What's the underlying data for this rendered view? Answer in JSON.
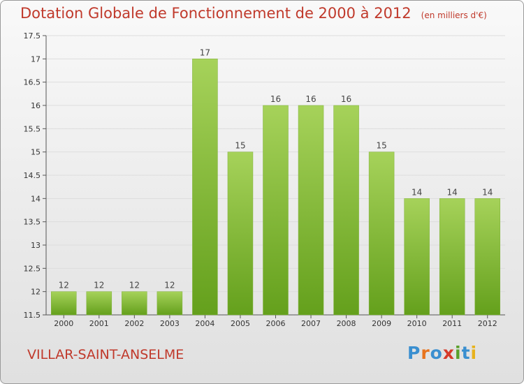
{
  "title": "Dotation Globale de Fonctionnement de 2000 à 2012",
  "unit_note": "(en milliers d'€)",
  "commune": "VILLAR-SAINT-ANSELME",
  "logo": {
    "letters": [
      "P",
      "r",
      "o",
      "x",
      "i",
      "t",
      "i"
    ],
    "colors": [
      "#3a8fd0",
      "#e8731c",
      "#3a8fd0",
      "#d63a2a",
      "#5aa02c",
      "#3a8fd0",
      "#e8b21c"
    ]
  },
  "colors": {
    "bar_top": "#a6d25a",
    "bar_bottom": "#64a01c",
    "title": "#c0392b",
    "grid": "#dddddd"
  },
  "chart_data": {
    "type": "bar",
    "title": "Dotation Globale de Fonctionnement de 2000 à 2012",
    "ylabel": "(en milliers d'€)",
    "xlabel": "",
    "categories": [
      "2000",
      "2001",
      "2002",
      "2003",
      "2004",
      "2005",
      "2006",
      "2007",
      "2008",
      "2009",
      "2010",
      "2011",
      "2012"
    ],
    "values": [
      12,
      12,
      12,
      12,
      17,
      15,
      16,
      16,
      16,
      15,
      14,
      14,
      14
    ],
    "ylim": [
      11.5,
      17.5
    ],
    "yticks": [
      "11.5",
      "12",
      "12.5",
      "13",
      "13.5",
      "14",
      "14.5",
      "15",
      "15.5",
      "16",
      "16.5",
      "17",
      "17.5"
    ],
    "grid": true
  }
}
